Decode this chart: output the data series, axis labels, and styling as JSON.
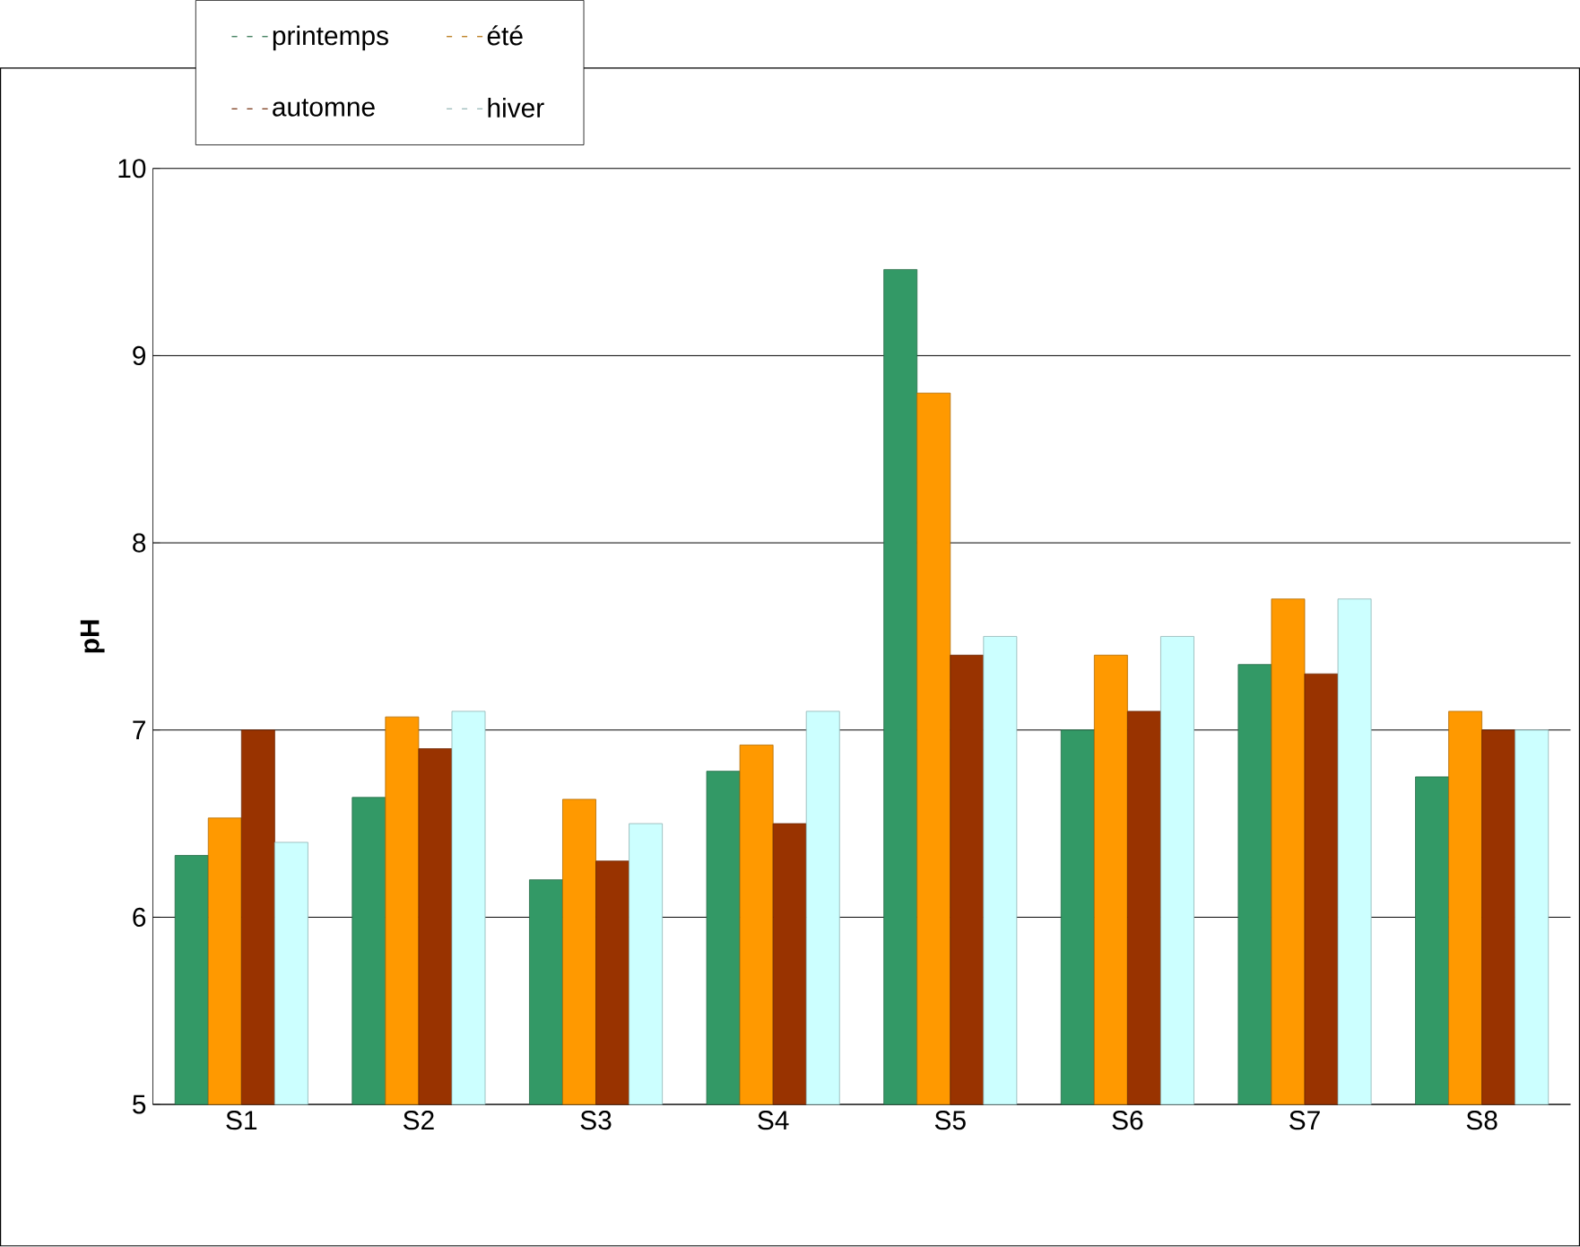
{
  "chart_data": {
    "type": "bar",
    "ylabel": "pH",
    "categories": [
      "S1",
      "S2",
      "S3",
      "S4",
      "S5",
      "S6",
      "S7",
      "S8"
    ],
    "series": [
      {
        "name": "printemps",
        "color": "#339966",
        "values": [
          6.33,
          6.64,
          6.2,
          6.78,
          9.46,
          7.0,
          7.35,
          6.75
        ]
      },
      {
        "name": "été",
        "color": "#ff9900",
        "values": [
          6.53,
          7.07,
          6.63,
          6.92,
          8.8,
          7.4,
          7.7,
          7.1
        ]
      },
      {
        "name": "automne",
        "color": "#993300",
        "values": [
          7.0,
          6.9,
          6.3,
          6.5,
          7.4,
          7.1,
          7.3,
          7.0
        ]
      },
      {
        "name": "hiver",
        "color": "#ccffff",
        "values": [
          6.4,
          7.1,
          6.5,
          7.1,
          7.5,
          7.5,
          7.7,
          7.0
        ]
      }
    ],
    "ylim": [
      5,
      10
    ],
    "yticks": [
      5,
      6,
      7,
      8,
      9,
      10
    ],
    "grid": "y",
    "legend": "top left"
  }
}
